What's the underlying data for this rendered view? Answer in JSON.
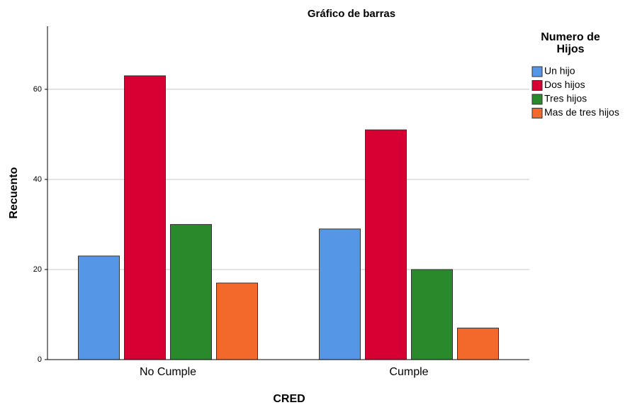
{
  "chart_data": {
    "type": "bar",
    "title": "Gráfico de barras",
    "x_label": "CRED",
    "y_label": "Recuento",
    "categories": [
      "No Cumple",
      "Cumple"
    ],
    "legend_title": "Numero de Hijos",
    "series": [
      {
        "name": "Un hijo",
        "color": "#5596e6",
        "values": [
          23,
          29
        ]
      },
      {
        "name": "Dos hijos",
        "color": "#d70033",
        "values": [
          63,
          51
        ]
      },
      {
        "name": "Tres hijos",
        "color": "#298a2c",
        "values": [
          30,
          20
        ]
      },
      {
        "name": "Mas de tres hijos",
        "color": "#f3692b",
        "values": [
          17,
          7
        ]
      }
    ],
    "ylim": [
      0,
      74
    ],
    "yticks": [
      0,
      20,
      40,
      60
    ],
    "grid": true,
    "legend": "right"
  }
}
